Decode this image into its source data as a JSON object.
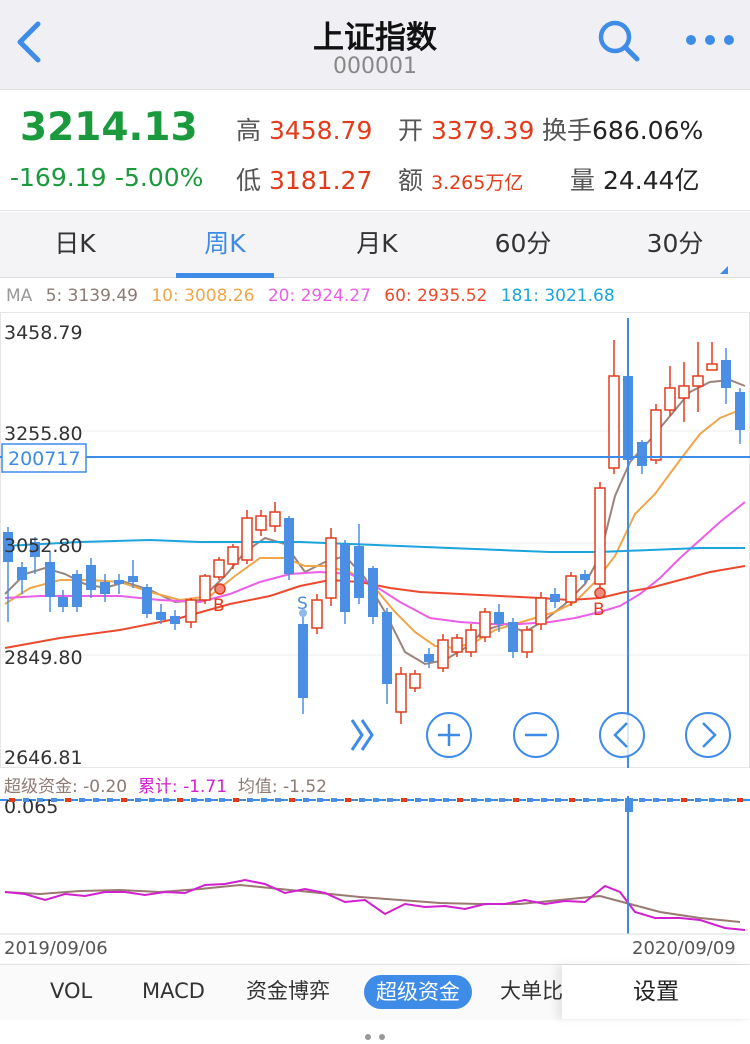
{
  "header": {
    "title": "上证指数",
    "code": "000001",
    "back_icon": "chevron-left-icon",
    "search_icon": "search-icon",
    "more_icon": "more-dots-icon"
  },
  "quote": {
    "price": "3214.13",
    "change": "-169.19",
    "change_pct": "-5.00%",
    "high_label": "高",
    "high": "3458.79",
    "open_label": "开",
    "open": "3379.39",
    "turnover_label": "换手",
    "turnover": "686.06%",
    "low_label": "低",
    "low": "3181.27",
    "amount_label": "额",
    "amount": "3.265万亿",
    "volume_label": "量",
    "volume": "24.44亿"
  },
  "tabs": [
    {
      "label": "日K"
    },
    {
      "label": "周K",
      "active": true
    },
    {
      "label": "月K"
    },
    {
      "label": "60分"
    },
    {
      "label": "30分"
    }
  ],
  "ma": {
    "label": "MA",
    "items": [
      {
        "text": "5: 3139.49",
        "color": "#8c7a74"
      },
      {
        "text": "10: 3008.26",
        "color": "#f0a64a"
      },
      {
        "text": "20: 2924.27",
        "color": "#ec5fe6"
      },
      {
        "text": "60: 2935.52",
        "color": "#ec4a2e"
      },
      {
        "text": "181: 3021.68",
        "color": "#1aa5dc"
      }
    ]
  },
  "chart": {
    "y_ticks": [
      "3458.79",
      "3255.80",
      "3052.80",
      "2849.80",
      "2646.81"
    ],
    "crosshair_label": "200717",
    "markers": [
      "B",
      "S",
      "B"
    ],
    "start_date": "2019/09/06",
    "end_date": "2020/09/09",
    "controls": [
      "fast-forward-icon",
      "zoom-in-icon",
      "zoom-out-icon",
      "scroll-left-icon",
      "scroll-right-icon"
    ]
  },
  "superflow": {
    "title": "超级资金: -0.20",
    "cum": "累计: -1.71",
    "avg": "均值: -1.52",
    "y_tick": "0.065"
  },
  "chart_data": {
    "type": "candlestick",
    "title": "",
    "y_ticks": [
      3458.79,
      3255.8,
      3052.8,
      2849.8,
      2646.81
    ],
    "ylim": [
      2646.81,
      3458.79
    ],
    "ma_values": {
      "MA5": 3139.49,
      "MA10": 3008.26,
      "MA20": 2924.27,
      "MA60": 2935.52,
      "MA181": 3021.68
    },
    "x_start": "2019/09/06",
    "x_end": "2020/09/09"
  },
  "bottom_tabs": [
    {
      "label": "VOL"
    },
    {
      "label": "MACD"
    },
    {
      "label": "资金博弈"
    },
    {
      "label": "超级资金",
      "active": true
    },
    {
      "label": "大单比"
    }
  ],
  "settings": "设置",
  "colors": {
    "up": "#e23b1b",
    "down": "#4a8fe4",
    "accent": "#3e8ce8",
    "green": "#1a9a3c"
  }
}
